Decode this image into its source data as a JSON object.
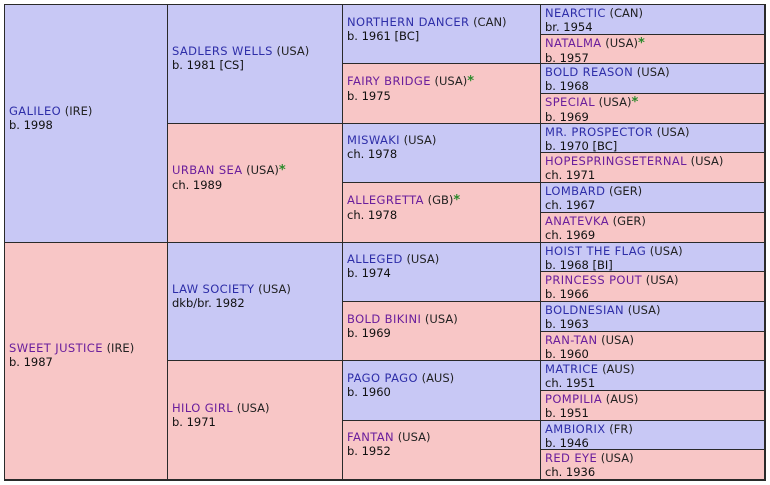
{
  "pedigree": {
    "gen1": [
      {
        "name": "GALILEO",
        "country": "(IRE)",
        "born": "b. 1998",
        "star": ""
      },
      {
        "name": "SWEET JUSTICE",
        "country": "(IRE)",
        "born": "b. 1987",
        "star": ""
      }
    ],
    "gen2": [
      {
        "name": "SADLERS WELLS",
        "country": "(USA)",
        "born": "b. 1981 [CS]",
        "star": ""
      },
      {
        "name": "URBAN SEA",
        "country": "(USA)",
        "born": "ch. 1989",
        "star": "*"
      },
      {
        "name": "LAW SOCIETY",
        "country": "(USA)",
        "born": "dkb/br. 1982",
        "star": ""
      },
      {
        "name": "HILO GIRL",
        "country": "(USA)",
        "born": "b. 1971",
        "star": ""
      }
    ],
    "gen3": [
      {
        "name": "NORTHERN DANCER",
        "country": "(CAN)",
        "born": "b. 1961 [BC]",
        "star": ""
      },
      {
        "name": "FAIRY BRIDGE",
        "country": "(USA)",
        "born": "b. 1975",
        "star": "*"
      },
      {
        "name": "MISWAKI",
        "country": "(USA)",
        "born": "ch. 1978",
        "star": ""
      },
      {
        "name": "ALLEGRETTA",
        "country": "(GB)",
        "born": "ch. 1978",
        "star": "*"
      },
      {
        "name": "ALLEGED",
        "country": "(USA)",
        "born": "b. 1974",
        "star": ""
      },
      {
        "name": "BOLD BIKINI",
        "country": "(USA)",
        "born": "b. 1969",
        "star": ""
      },
      {
        "name": "PAGO PAGO",
        "country": "(AUS)",
        "born": "b. 1960",
        "star": ""
      },
      {
        "name": "FANTAN",
        "country": "(USA)",
        "born": "b. 1952",
        "star": ""
      }
    ],
    "gen4": [
      {
        "name": "NEARCTIC",
        "country": "(CAN)",
        "born": "br. 1954",
        "star": ""
      },
      {
        "name": "NATALMA",
        "country": "(USA)",
        "born": "b. 1957",
        "star": "*"
      },
      {
        "name": "BOLD REASON",
        "country": "(USA)",
        "born": "b. 1968",
        "star": ""
      },
      {
        "name": "SPECIAL",
        "country": "(USA)",
        "born": "b. 1969",
        "star": "*"
      },
      {
        "name": "MR. PROSPECTOR",
        "country": "(USA)",
        "born": "b. 1970 [BC]",
        "star": ""
      },
      {
        "name": "HOPESPRINGSETERNAL",
        "country": "(USA)",
        "born": "ch. 1971",
        "star": ""
      },
      {
        "name": "LOMBARD",
        "country": "(GER)",
        "born": "ch. 1967",
        "star": ""
      },
      {
        "name": "ANATEVKA",
        "country": "(GER)",
        "born": "ch. 1969",
        "star": ""
      },
      {
        "name": "HOIST THE FLAG",
        "country": "(USA)",
        "born": "b. 1968 [BI]",
        "star": ""
      },
      {
        "name": "PRINCESS POUT",
        "country": "(USA)",
        "born": "b. 1966",
        "star": ""
      },
      {
        "name": "BOLDNESIAN",
        "country": "(USA)",
        "born": "b. 1963",
        "star": ""
      },
      {
        "name": "RAN-TAN",
        "country": "(USA)",
        "born": "b. 1960",
        "star": ""
      },
      {
        "name": "MATRICE",
        "country": "(AUS)",
        "born": "ch. 1951",
        "star": ""
      },
      {
        "name": "POMPILIA",
        "country": "(AUS)",
        "born": "b. 1951",
        "star": ""
      },
      {
        "name": "AMBIORIX",
        "country": "(FR)",
        "born": "b. 1946",
        "star": ""
      },
      {
        "name": "RED EYE",
        "country": "(USA)",
        "born": "ch. 1936",
        "star": ""
      }
    ]
  },
  "colors": {
    "sire": "#c8c8f5",
    "dam": "#f8c6c6",
    "star": "#2b8a2b",
    "sire_link": "#2e2ea8",
    "dam_link": "#6a1e9c"
  },
  "icons": {
    "star": "green-asterisk"
  }
}
